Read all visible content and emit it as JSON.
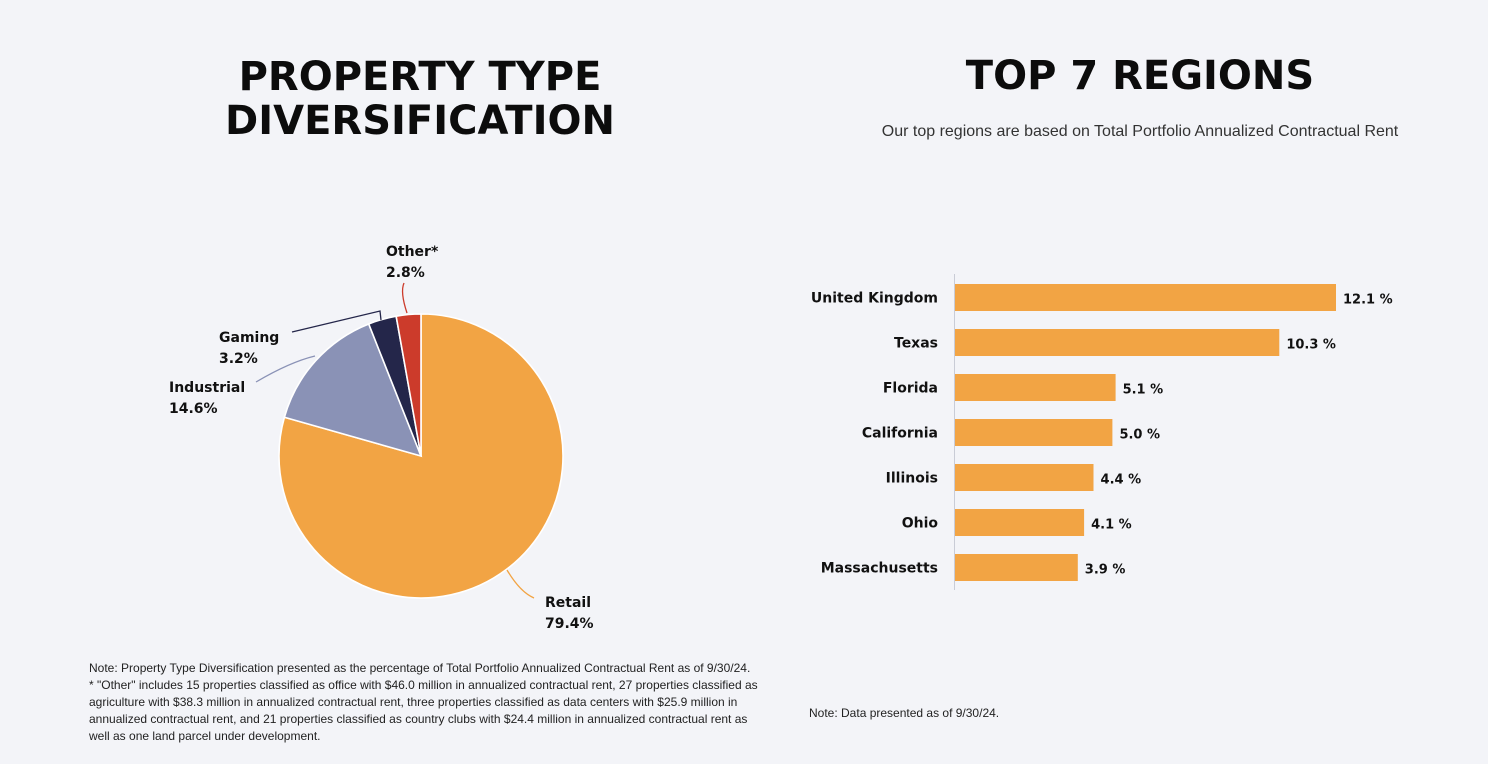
{
  "left": {
    "title_line1": "PROPERTY TYPE",
    "title_line2": "DIVERSIFICATION",
    "note": "Note: Property Type Diversification presented as the percentage of Total Portfolio Annualized Contractual Rent as of 9/30/24.",
    "footnote": "*  \"Other\" includes 15 properties classified as office with $46.0 million in annualized contractual rent, 27 properties classified as agriculture with $38.3 million in annualized contractual rent, three properties classified as data centers with $25.9 million in annualized contractual rent, and 21 properties classified as country clubs with $24.4 million in annualized contractual rent as well as one land parcel under development."
  },
  "right": {
    "title": "TOP 7 REGIONS",
    "subtitle": "Our top regions are based on Total Portfolio Annualized Contractual Rent",
    "note": "Note: Data presented as of 9/30/24."
  },
  "chart_data": [
    {
      "type": "pie",
      "title": "PROPERTY TYPE DIVERSIFICATION",
      "slices": [
        {
          "name": "Retail",
          "value": 79.4,
          "label": "79.4%",
          "color": "#f2a444"
        },
        {
          "name": "Industrial",
          "value": 14.6,
          "label": "14.6%",
          "color": "#8a92b6"
        },
        {
          "name": "Gaming",
          "value": 3.2,
          "label": "3.2%",
          "color": "#24264a"
        },
        {
          "name": "Other*",
          "value": 2.8,
          "label": "2.8%",
          "color": "#cc3b2b"
        }
      ]
    },
    {
      "type": "bar",
      "orientation": "horizontal",
      "title": "TOP 7 REGIONS",
      "categories": [
        "United Kingdom",
        "Texas",
        "Florida",
        "California",
        "Illinois",
        "Ohio",
        "Massachusetts"
      ],
      "values": [
        12.1,
        10.3,
        5.1,
        5.0,
        4.4,
        4.1,
        3.9
      ],
      "labels": [
        "12.1 %",
        "10.3 %",
        "5.1 %",
        "5.0 %",
        "4.4 %",
        "4.1 %",
        "3.9 %"
      ],
      "color": "#f2a444",
      "xlim": [
        0,
        12.1
      ]
    }
  ]
}
